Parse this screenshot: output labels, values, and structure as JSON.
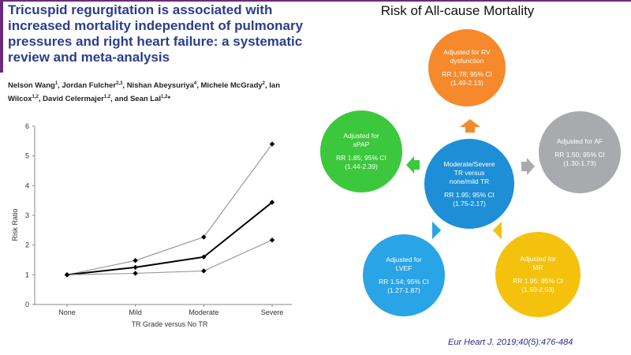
{
  "paper": {
    "title": "Tricuspid regurgitation is associated with increased mortality independent of pulmonary pressures and right heart failure: a systematic review and meta-analysis",
    "authors_html": "Nelson Wang<sup>1</sup>, Jordan Fulcher<sup>2,3</sup>, Nishan Abeysuriya<sup>4</sup>, Michele McGrady<sup>2</sup>, Ian Wilcox<sup>1,2</sup>, David Celermajer<sup>1,2</sup>, and Sean Lal<sup>1,2</sup>*"
  },
  "chart_data": {
    "type": "line",
    "categories": [
      "None",
      "Mild",
      "Moderate",
      "Severe"
    ],
    "series": [
      {
        "values": [
          1,
          1.48,
          2.27,
          5.4
        ]
      },
      {
        "values": [
          1,
          1.25,
          1.6,
          3.44
        ]
      },
      {
        "values": [
          1,
          1.05,
          1.13,
          2.17
        ]
      }
    ],
    "xlabel": "TR Grade versus No TR",
    "ylabel": "Risk Ratio",
    "ylim": [
      0,
      6
    ],
    "yticks": [
      "0",
      "1",
      "2",
      "3",
      "4",
      "5",
      "6"
    ],
    "colors": {
      "center": "#000000",
      "bounds": "#9a9a9a"
    }
  },
  "diagram": {
    "title": "Risk of All-cause Mortality",
    "center": {
      "l1": "Moderate/Severe",
      "l2": "TR versus",
      "l3": "none/mild TR",
      "rr": "RR 1.95; 95% CI",
      "ci": "(1.75-2.17)",
      "color": "#1e8fd6"
    },
    "top": {
      "l1": "Adjusted for RV",
      "l2": "dysfunction",
      "rr": "RR 1.78; 95% CI",
      "ci": "(1.49-2.13)",
      "color": "#f5892c"
    },
    "right": {
      "l1": "Adjusted for AF",
      "rr": "RR 1.50; 95% CI",
      "ci": "(1.30-1.73)",
      "color": "#a8aaad"
    },
    "bottom_right": {
      "l1": "Adjusted for",
      "l2": "MR",
      "rr": "RR 1.95; 95% CI",
      "ci": "(1.50-2.53)",
      "color": "#f4c20d"
    },
    "bottom_left": {
      "l1": "Adjusted for",
      "l2": "LVEF",
      "rr": "RR 1.54; 95% CI",
      "ci": "(1.27-1.87)",
      "color": "#29a4e6"
    },
    "left": {
      "l1": "Adjusted for",
      "l2": "sPAP",
      "rr": "RR 1.85; 95% CI",
      "ci": "(1.44-2.39)",
      "color": "#3cc83c"
    }
  },
  "citation": "Eur Heart J. 2019;40(5):476-484"
}
